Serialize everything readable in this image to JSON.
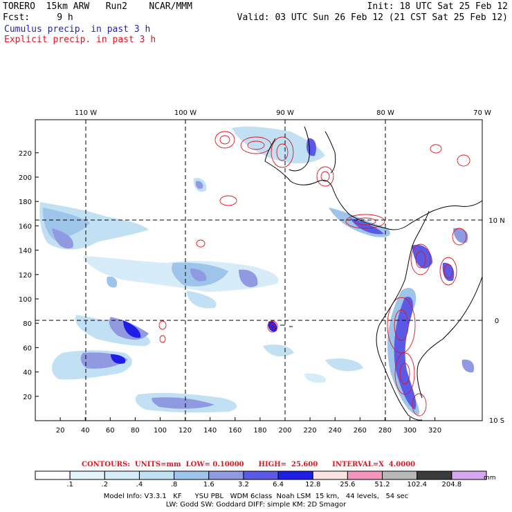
{
  "header": {
    "line1_left": "TORERO  15km ARW   Run2    NCAR/MMM",
    "line1_right": "Init: 18 UTC Sat 25 Feb 12",
    "line2_left": "Fcst:     9 h",
    "line2_right": "Valid: 03 UTC Sun 26 Feb 12 (21 CST Sat 25 Feb 12)",
    "field1": "Cumulus precip. in past 3 h",
    "field2": "Explicit precip. in past 3 h"
  },
  "colors": {
    "field1": "#1f1fb4",
    "field2": "#e0141e",
    "coast": "#000000"
  },
  "map": {
    "lon_labels": [
      "110 W",
      "100 W",
      "90 W",
      "80 W",
      "70 W"
    ],
    "lat_labels": [
      "10 N",
      "0",
      "10 S"
    ],
    "x_ticks": [
      "20",
      "40",
      "60",
      "80",
      "100",
      "120",
      "140",
      "160",
      "180",
      "200",
      "220",
      "240",
      "260",
      "280",
      "300",
      "320"
    ],
    "y_ticks": [
      "20",
      "40",
      "60",
      "80",
      "100",
      "120",
      "140",
      "160",
      "180",
      "200",
      "220"
    ],
    "grid_lines": "dashed"
  },
  "contours": {
    "text": "CONTOURS:  UNITS=mm  LOW= 0.10000      HIGH=  25.600      INTERVAL=X  4.0000"
  },
  "legend": {
    "units": "mm",
    "values": [
      ".1",
      ".2",
      ".4",
      ".8",
      "1.6",
      "3.2",
      "6.4",
      "12.8",
      "25.6",
      "51.2",
      "102.4",
      "204.8"
    ],
    "colors": [
      "#ffffff",
      "#e6f3fb",
      "#d6ecf8",
      "#c2e0f4",
      "#9fc4ea",
      "#8f9ae0",
      "#5a5ae6",
      "#1e1ee6",
      "#fbe2e2",
      "#f294bc",
      "#b8b8b8",
      "#3c3c3c",
      "#d6a6f0"
    ]
  },
  "footer": {
    "line1": "Model Info: V3.3.1   KF      YSU PBL   WDM 6class  Noah LSM  15 km,   44 levels,   54 sec",
    "line2": "LW: Godd SW: Goddard DIFF: simple KM: 2D Smagor"
  }
}
